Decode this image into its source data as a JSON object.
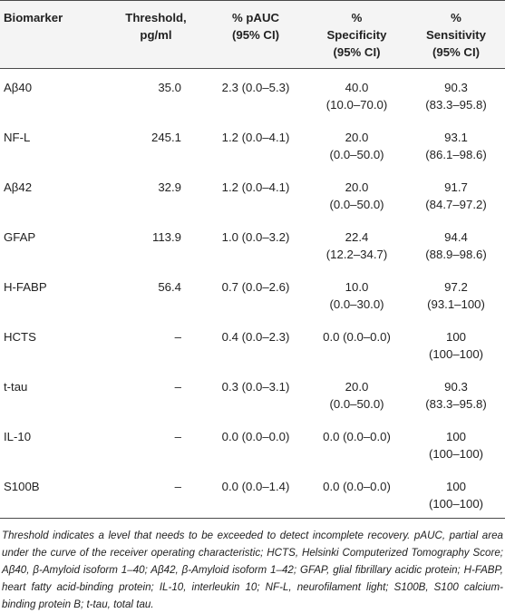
{
  "table": {
    "headers": {
      "biomarker": [
        "Biomarker"
      ],
      "threshold": [
        "Threshold,",
        "pg/ml"
      ],
      "pauc": [
        "% pAUC",
        "(95% CI)"
      ],
      "specificity": [
        "%",
        "Specificity",
        "(95% CI)"
      ],
      "sensitivity": [
        "%",
        "Sensitivity",
        "(95% CI)"
      ]
    },
    "rows": [
      {
        "biomarker": "Aβ40",
        "threshold": "35.0",
        "pauc": "2.3 (0.0–5.3)",
        "specificity": [
          "40.0",
          "(10.0–70.0)"
        ],
        "sensitivity": [
          "90.3",
          "(83.3–95.8)"
        ]
      },
      {
        "biomarker": "NF-L",
        "threshold": "245.1",
        "pauc": "1.2 (0.0–4.1)",
        "specificity": [
          "20.0",
          "(0.0–50.0)"
        ],
        "sensitivity": [
          "93.1",
          "(86.1–98.6)"
        ]
      },
      {
        "biomarker": "Aβ42",
        "threshold": "32.9",
        "pauc": "1.2 (0.0–4.1)",
        "specificity": [
          "20.0",
          "(0.0–50.0)"
        ],
        "sensitivity": [
          "91.7",
          "(84.7–97.2)"
        ]
      },
      {
        "biomarker": "GFAP",
        "threshold": "113.9",
        "pauc": "1.0 (0.0–3.2)",
        "specificity": [
          "22.4",
          "(12.2–34.7)"
        ],
        "sensitivity": [
          "94.4",
          "(88.9–98.6)"
        ]
      },
      {
        "biomarker": "H-FABP",
        "threshold": "56.4",
        "pauc": "0.7 (0.0–2.6)",
        "specificity": [
          "10.0",
          "(0.0–30.0)"
        ],
        "sensitivity": [
          "97.2",
          "(93.1–100)"
        ]
      },
      {
        "biomarker": "HCTS",
        "threshold": "–",
        "pauc": "0.4 (0.0–2.3)",
        "specificity": [
          "0.0 (0.0–0.0)"
        ],
        "sensitivity": [
          "100",
          "(100–100)"
        ]
      },
      {
        "biomarker": "t-tau",
        "threshold": "–",
        "pauc": "0.3 (0.0–3.1)",
        "specificity": [
          "20.0",
          "(0.0–50.0)"
        ],
        "sensitivity": [
          "90.3",
          "(83.3–95.8)"
        ]
      },
      {
        "biomarker": "IL-10",
        "threshold": "–",
        "pauc": "0.0 (0.0–0.0)",
        "specificity": [
          "0.0 (0.0–0.0)"
        ],
        "sensitivity": [
          "100",
          "(100–100)"
        ]
      },
      {
        "biomarker": "S100B",
        "threshold": "–",
        "pauc": "0.0 (0.0–1.4)",
        "specificity": [
          "0.0 (0.0–0.0)"
        ],
        "sensitivity": [
          "100",
          "(100–100)"
        ]
      }
    ]
  },
  "footnote": "Threshold indicates a level that needs to be exceeded to detect incomplete recovery. pAUC, partial area under the curve of the receiver operating characteristic; HCTS, Helsinki Computerized Tomography Score; Aβ40, β-Amyloid isoform 1–40; Aβ42, β-Amyloid isoform 1–42; GFAP, glial fibrillary acidic protein; H-FABP, heart fatty acid-binding protein; IL-10, interleukin 10; NF-L, neurofilament light; S100B, S100 calcium-binding protein B; t-tau, total tau."
}
